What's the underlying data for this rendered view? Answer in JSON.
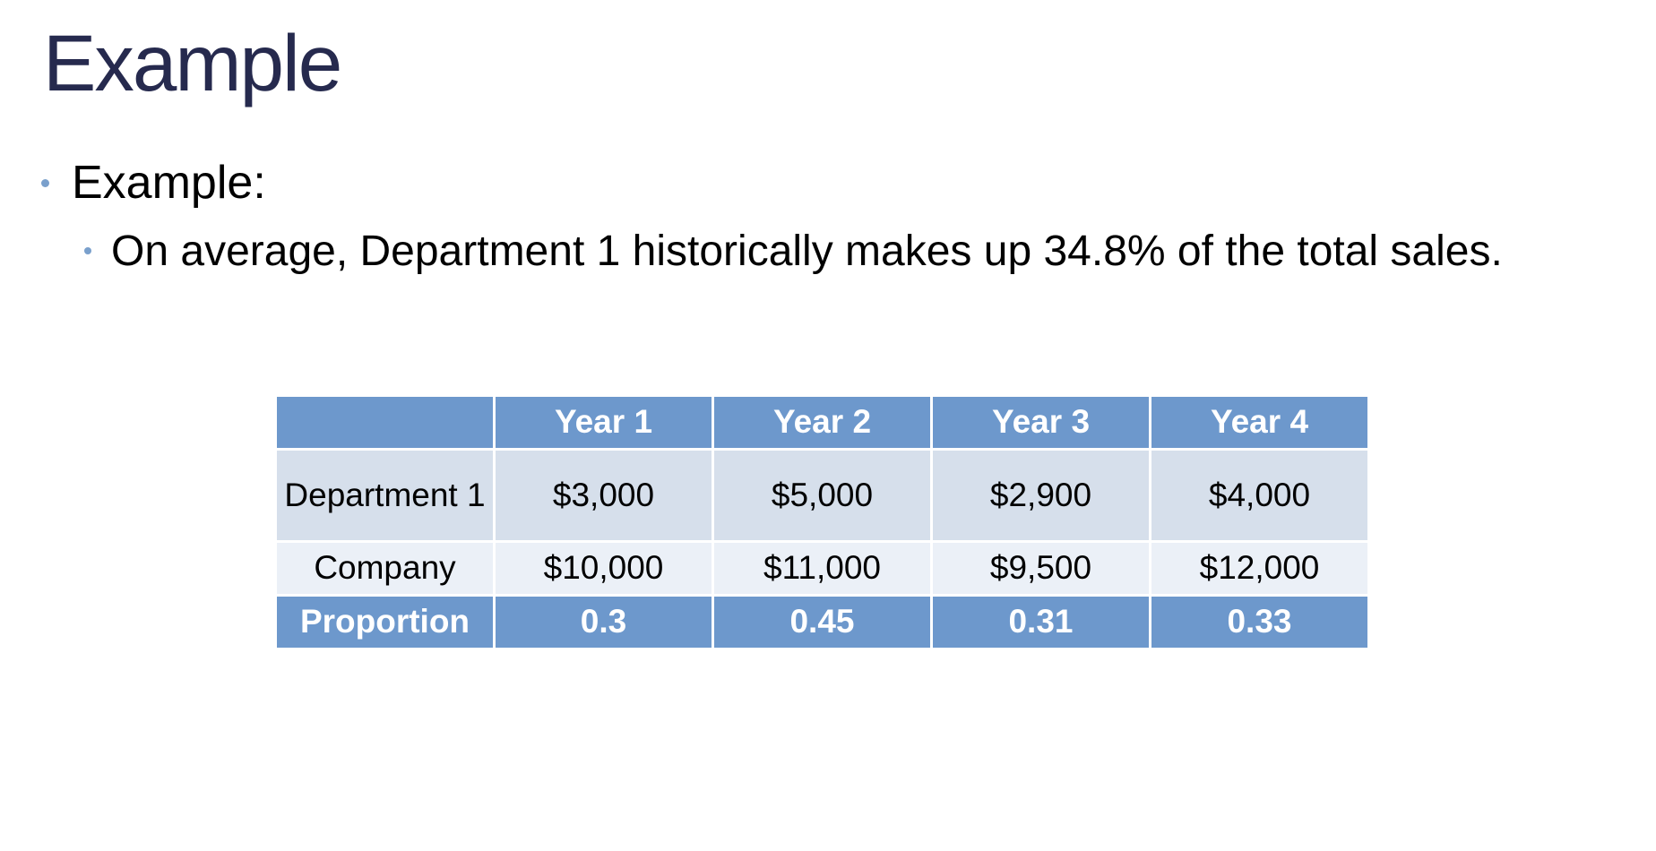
{
  "slide": {
    "title": "Example",
    "bullets": [
      {
        "level": 1,
        "text": "Example:"
      },
      {
        "level": 2,
        "text": "On average, Department 1 historically makes up 34.8% of the total sales."
      }
    ]
  },
  "table": {
    "header": [
      "",
      "Year 1",
      "Year 2",
      "Year 3",
      "Year 4"
    ],
    "rows": [
      {
        "label": "Department 1",
        "values": [
          "$3,000",
          "$5,000",
          "$2,900",
          "$4,000"
        ]
      },
      {
        "label": "Company",
        "values": [
          "$10,000",
          "$11,000",
          "$9,500",
          "$12,000"
        ]
      },
      {
        "label": "Proportion",
        "values": [
          "0.3",
          "0.45",
          "0.31",
          "0.33"
        ]
      }
    ]
  },
  "colors": {
    "title": "#262a4e",
    "bullet_dot": "#7aa0cc",
    "header_fill": "#6d98cc",
    "row_dark": "#d6dfeb",
    "row_light": "#ebf0f7"
  }
}
